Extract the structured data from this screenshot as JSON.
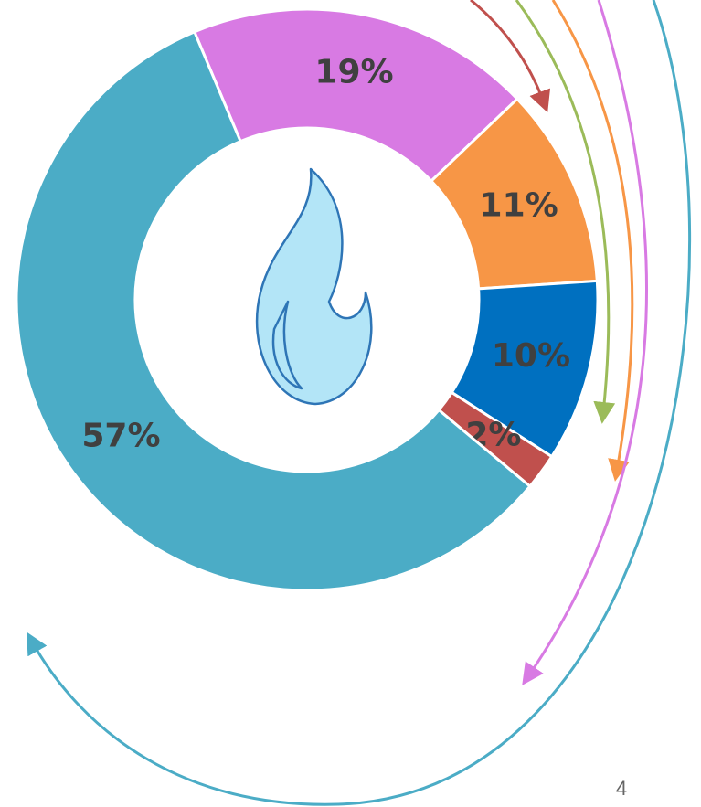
{
  "chart_data": {
    "type": "donut",
    "categories": [
      null,
      null,
      null,
      null,
      null
    ],
    "values": [
      19,
      11,
      10,
      2,
      57
    ],
    "value_labels": [
      "19%",
      "11%",
      "10%",
      "2%",
      "57%"
    ],
    "colors": [
      "#d87ae3",
      "#f79646",
      "#0070c0",
      "#c0504d",
      "#4bacc6"
    ]
  },
  "page_number": "4"
}
